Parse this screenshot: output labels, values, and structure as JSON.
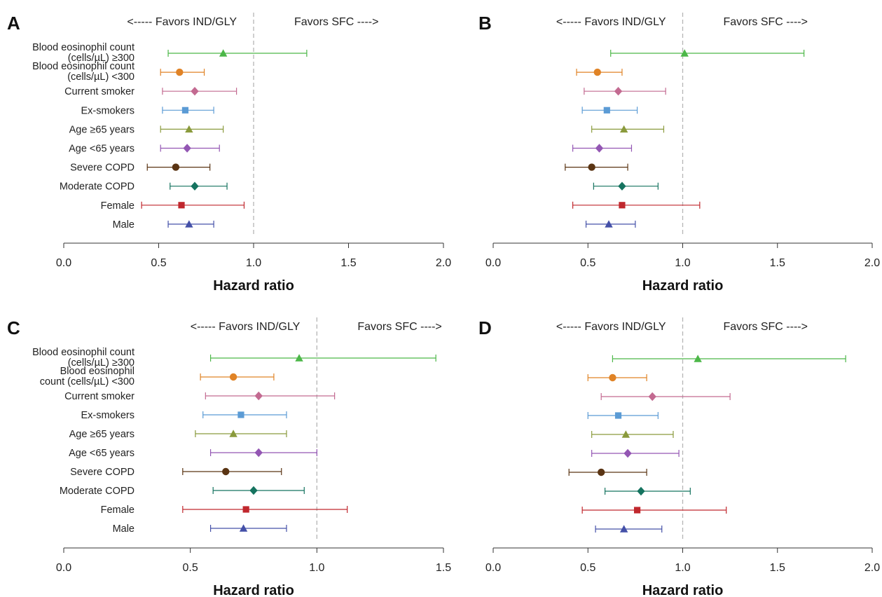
{
  "colors": {
    "green": "#4cb748",
    "orange": "#e08326",
    "pink": "#c36a91",
    "blue": "#5b9bd5",
    "olive": "#8a9a3c",
    "purple": "#9356b3",
    "brown": "#5a3413",
    "teal": "#15735f",
    "red": "#c0272d",
    "indigo": "#4450a8",
    "reference_line": "#b5b5b5",
    "axis": "#333333"
  },
  "chart_data": [
    {
      "type": "forest",
      "panel_label": "A",
      "annotation_left": "<----- Favors IND/GLY",
      "annotation_right": "Favors SFC ---->",
      "xlabel": "Hazard ratio",
      "xlim": [
        0,
        2
      ],
      "xticks": [
        "0.0",
        "0.5",
        "1.0",
        "1.5",
        "2.0"
      ],
      "reference": 1.0,
      "rows": [
        {
          "label": [
            "Blood eosinophil count",
            "(cells/µL) ≥300"
          ],
          "hr": 0.84,
          "lo": 0.55,
          "hi": 1.28,
          "marker": "triangle",
          "color": "green"
        },
        {
          "label": [
            "Blood eosinophil count",
            "(cells/µL) <300"
          ],
          "hr": 0.61,
          "lo": 0.51,
          "hi": 0.74,
          "marker": "circle",
          "color": "orange"
        },
        {
          "label": [
            "Current smoker"
          ],
          "hr": 0.69,
          "lo": 0.52,
          "hi": 0.91,
          "marker": "diamond",
          "color": "pink"
        },
        {
          "label": [
            "Ex-smokers"
          ],
          "hr": 0.64,
          "lo": 0.52,
          "hi": 0.79,
          "marker": "square",
          "color": "blue"
        },
        {
          "label": [
            "Age ≥65 years"
          ],
          "hr": 0.66,
          "lo": 0.51,
          "hi": 0.84,
          "marker": "triangle",
          "color": "olive"
        },
        {
          "label": [
            "Age <65 years"
          ],
          "hr": 0.65,
          "lo": 0.51,
          "hi": 0.82,
          "marker": "diamond",
          "color": "purple"
        },
        {
          "label": [
            "Severe COPD"
          ],
          "hr": 0.59,
          "lo": 0.44,
          "hi": 0.77,
          "marker": "circle",
          "color": "brown"
        },
        {
          "label": [
            "Moderate COPD"
          ],
          "hr": 0.69,
          "lo": 0.56,
          "hi": 0.86,
          "marker": "diamond",
          "color": "teal"
        },
        {
          "label": [
            "Female"
          ],
          "hr": 0.62,
          "lo": 0.41,
          "hi": 0.95,
          "marker": "square",
          "color": "red"
        },
        {
          "label": [
            "Male"
          ],
          "hr": 0.66,
          "lo": 0.55,
          "hi": 0.79,
          "marker": "triangle",
          "color": "indigo"
        }
      ]
    },
    {
      "type": "forest",
      "panel_label": "B",
      "annotation_left": "<----- Favors IND/GLY",
      "annotation_right": "Favors SFC ---->",
      "xlabel": "Hazard ratio",
      "xlim": [
        0,
        2
      ],
      "xticks": [
        "0.0",
        "0.5",
        "1.0",
        "1.5",
        "2.0"
      ],
      "reference": 1.0,
      "rows": [
        {
          "label": [],
          "hr": 1.01,
          "lo": 0.62,
          "hi": 1.64,
          "marker": "triangle",
          "color": "green"
        },
        {
          "label": [],
          "hr": 0.55,
          "lo": 0.44,
          "hi": 0.68,
          "marker": "circle",
          "color": "orange"
        },
        {
          "label": [],
          "hr": 0.66,
          "lo": 0.48,
          "hi": 0.91,
          "marker": "diamond",
          "color": "pink"
        },
        {
          "label": [],
          "hr": 0.6,
          "lo": 0.47,
          "hi": 0.76,
          "marker": "square",
          "color": "blue"
        },
        {
          "label": [],
          "hr": 0.69,
          "lo": 0.52,
          "hi": 0.9,
          "marker": "triangle",
          "color": "olive"
        },
        {
          "label": [],
          "hr": 0.56,
          "lo": 0.42,
          "hi": 0.73,
          "marker": "diamond",
          "color": "purple"
        },
        {
          "label": [],
          "hr": 0.52,
          "lo": 0.38,
          "hi": 0.71,
          "marker": "circle",
          "color": "brown"
        },
        {
          "label": [],
          "hr": 0.68,
          "lo": 0.53,
          "hi": 0.87,
          "marker": "diamond",
          "color": "teal"
        },
        {
          "label": [],
          "hr": 0.68,
          "lo": 0.42,
          "hi": 1.09,
          "marker": "square",
          "color": "red"
        },
        {
          "label": [],
          "hr": 0.61,
          "lo": 0.49,
          "hi": 0.75,
          "marker": "triangle",
          "color": "indigo"
        }
      ]
    },
    {
      "type": "forest",
      "panel_label": "C",
      "annotation_left": "<----- Favors IND/GLY",
      "annotation_right": "Favors SFC ---->",
      "xlabel": "Hazard ratio",
      "xlim": [
        0,
        1.5
      ],
      "xticks": [
        "0.0",
        "0.5",
        "1.0",
        "1.5"
      ],
      "reference": 1.0,
      "rows": [
        {
          "label": [
            "Blood eosinophil count",
            "(cells/µL) ≥300"
          ],
          "hr": 0.93,
          "lo": 0.58,
          "hi": 1.47,
          "marker": "triangle",
          "color": "green"
        },
        {
          "label": [
            "Blood eosinophil",
            "count (cells/µL) <300"
          ],
          "hr": 0.67,
          "lo": 0.54,
          "hi": 0.83,
          "marker": "circle",
          "color": "orange"
        },
        {
          "label": [
            "Current smoker"
          ],
          "hr": 0.77,
          "lo": 0.56,
          "hi": 1.07,
          "marker": "diamond",
          "color": "pink"
        },
        {
          "label": [
            "Ex-smokers"
          ],
          "hr": 0.7,
          "lo": 0.55,
          "hi": 0.88,
          "marker": "square",
          "color": "blue"
        },
        {
          "label": [
            "Age ≥65 years"
          ],
          "hr": 0.67,
          "lo": 0.52,
          "hi": 0.88,
          "marker": "triangle",
          "color": "olive"
        },
        {
          "label": [
            "Age <65 years"
          ],
          "hr": 0.77,
          "lo": 0.58,
          "hi": 1.0,
          "marker": "diamond",
          "color": "purple"
        },
        {
          "label": [
            "Severe COPD"
          ],
          "hr": 0.64,
          "lo": 0.47,
          "hi": 0.86,
          "marker": "circle",
          "color": "brown"
        },
        {
          "label": [
            "Moderate COPD"
          ],
          "hr": 0.75,
          "lo": 0.59,
          "hi": 0.95,
          "marker": "diamond",
          "color": "teal"
        },
        {
          "label": [
            "Female"
          ],
          "hr": 0.72,
          "lo": 0.47,
          "hi": 1.12,
          "marker": "square",
          "color": "red"
        },
        {
          "label": [
            "Male"
          ],
          "hr": 0.71,
          "lo": 0.58,
          "hi": 0.88,
          "marker": "triangle",
          "color": "indigo"
        }
      ]
    },
    {
      "type": "forest",
      "panel_label": "D",
      "annotation_left": "<----- Favors IND/GLY",
      "annotation_right": "Favors SFC ---->",
      "xlabel": "Hazard ratio",
      "xlim": [
        0,
        2
      ],
      "xticks": [
        "0.0",
        "0.5",
        "1.0",
        "1.5",
        "2.0"
      ],
      "reference": 1.0,
      "rows": [
        {
          "label": [],
          "hr": 1.08,
          "lo": 0.63,
          "hi": 1.86,
          "marker": "triangle",
          "color": "green"
        },
        {
          "label": [],
          "hr": 0.63,
          "lo": 0.5,
          "hi": 0.81,
          "marker": "circle",
          "color": "orange"
        },
        {
          "label": [],
          "hr": 0.84,
          "lo": 0.57,
          "hi": 1.25,
          "marker": "diamond",
          "color": "pink"
        },
        {
          "label": [],
          "hr": 0.66,
          "lo": 0.5,
          "hi": 0.87,
          "marker": "square",
          "color": "blue"
        },
        {
          "label": [],
          "hr": 0.7,
          "lo": 0.52,
          "hi": 0.95,
          "marker": "triangle",
          "color": "olive"
        },
        {
          "label": [],
          "hr": 0.71,
          "lo": 0.52,
          "hi": 0.98,
          "marker": "diamond",
          "color": "purple"
        },
        {
          "label": [],
          "hr": 0.57,
          "lo": 0.4,
          "hi": 0.81,
          "marker": "circle",
          "color": "brown"
        },
        {
          "label": [],
          "hr": 0.78,
          "lo": 0.59,
          "hi": 1.04,
          "marker": "diamond",
          "color": "teal"
        },
        {
          "label": [],
          "hr": 0.76,
          "lo": 0.47,
          "hi": 1.23,
          "marker": "square",
          "color": "red"
        },
        {
          "label": [],
          "hr": 0.69,
          "lo": 0.54,
          "hi": 0.89,
          "marker": "triangle",
          "color": "indigo"
        }
      ]
    }
  ]
}
